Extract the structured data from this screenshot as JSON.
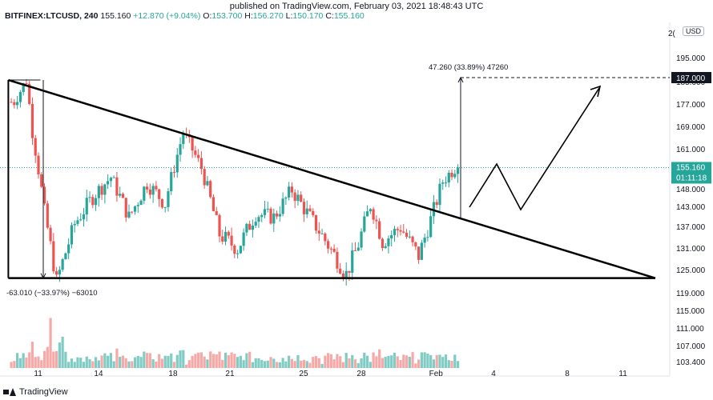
{
  "header": {
    "published": "published on TradingView.com, February 03, 2021 18:48:43 UTC"
  },
  "legend": {
    "symbol": "BITFINEX:LTCUSD, 240",
    "last": "155.160",
    "change": "+12.870 (+9.04%)",
    "o_label": "O:",
    "o_value": "153.700",
    "h_label": "H:",
    "h_value": "156.270",
    "l_label": "L:",
    "l_value": "150.170",
    "c_label": "C:",
    "c_value": "155.160"
  },
  "price_axis": {
    "currency": "USD",
    "top_partial": "2(",
    "ticks": [
      "195.000",
      "185.000",
      "177.000",
      "169.000",
      "161.000",
      "148.000",
      "143.000",
      "137.000",
      "131.000",
      "125.000",
      "119.000",
      "115.000",
      "111.000",
      "107.000",
      "103.400"
    ],
    "target_label": "187.000",
    "current_label": "155.160",
    "countdown_label": "01:11:18"
  },
  "time_axis": {
    "ticks": [
      "11",
      "14",
      "18",
      "21",
      "25",
      "28",
      "Feb",
      "4",
      "8",
      "11"
    ]
  },
  "annotations": {
    "upper_measure": "47.260 (33.89%) 47260",
    "lower_measure": "-63.010 (−33.97%) −63010"
  },
  "footer": {
    "brand": "TradingView"
  },
  "colors": {
    "up": "#26a69a",
    "down": "#ef5350",
    "vol_up": "#80cbc4",
    "vol_down": "#f7a9a7",
    "target_bg": "#131722",
    "current_bg": "#26a69a"
  },
  "chart_data": {
    "type": "candlestick",
    "symbol": "BITFINEX:LTCUSD",
    "interval": "240",
    "ylim": [
      103.4,
      200
    ],
    "y_scale": "nonlinear (as printed)",
    "x_ticks": [
      "11",
      "14",
      "18",
      "21",
      "25",
      "28",
      "Feb",
      "4",
      "8",
      "11"
    ],
    "close_path": [
      [
        "Jan 10",
        178
      ],
      [
        "Jan 10",
        186
      ],
      [
        "Jan 11",
        168
      ],
      [
        "Jan 11",
        141
      ],
      [
        "Jan 12",
        122
      ],
      [
        "Jan 13",
        138
      ],
      [
        "Jan 14",
        146
      ],
      [
        "Jan 15",
        152
      ],
      [
        "Jan 16",
        140
      ],
      [
        "Jan 17",
        150
      ],
      [
        "Jan 18",
        144
      ],
      [
        "Jan 19",
        167
      ],
      [
        "Jan 20",
        155
      ],
      [
        "Jan 21",
        135
      ],
      [
        "Jan 22",
        131
      ],
      [
        "Jan 23",
        141
      ],
      [
        "Jan 24",
        140
      ],
      [
        "Jan 25",
        148
      ],
      [
        "Jan 26",
        140
      ],
      [
        "Jan 27",
        132
      ],
      [
        "Jan 28",
        124
      ],
      [
        "Jan 29",
        132
      ],
      [
        "Jan 29",
        144
      ],
      [
        "Jan 30",
        133
      ],
      [
        "Jan 31",
        137
      ],
      [
        "Feb 1",
        129
      ],
      [
        "Feb 2",
        139
      ],
      [
        "Feb 2",
        151
      ],
      [
        "Feb 3",
        155.16
      ]
    ],
    "triangle": {
      "apex_price": 186,
      "base_price": 123,
      "apex_date": "Jan 10",
      "end_date": "Feb 12"
    },
    "measured_moves": [
      {
        "change": 47.26,
        "percent": 33.89,
        "from": 139.7,
        "to": 187
      },
      {
        "change": -63.01,
        "percent": -33.97,
        "from": 186,
        "to": 123
      }
    ],
    "target": 187,
    "last": 155.16
  }
}
